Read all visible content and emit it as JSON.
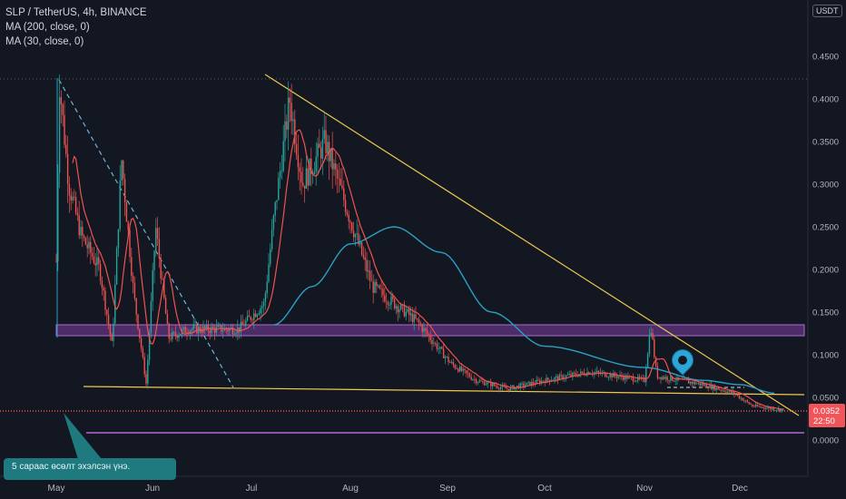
{
  "legend": {
    "symbol": "SLP / TetherUS, 4h, BINANCE",
    "ma200": "MA (200, close, 0)",
    "ma30": "MA (30, close, 0)"
  },
  "currency": "USDT",
  "annotation": "5 сараас өсөлт эхэлсэн үнэ.",
  "colors": {
    "background": "#131722",
    "candle_up": "#26a69a",
    "candle_down": "#ef5350",
    "ma200": "#2b9fc4",
    "ma30": "#ef5350",
    "trendline": "#f0c94c",
    "zone": "#7b3fa0",
    "price_badge": "#f0555a"
  },
  "last_price": {
    "value": "0.0352",
    "countdown": "22:50"
  },
  "chart_data": {
    "type": "candlestick",
    "title": "SLP / TetherUS, 4h, BINANCE",
    "y_axis": {
      "min": -0.02,
      "max": 0.48,
      "ticks": [
        "0.4500",
        "0.4000",
        "0.3500",
        "0.3000",
        "0.2500",
        "0.2000",
        "0.1500",
        "0.1000",
        "0.0500",
        "0.0000"
      ]
    },
    "x_axis": {
      "labels": [
        "May",
        "Jun",
        "Jul",
        "Aug",
        "Sep",
        "Oct",
        "Nov",
        "Dec"
      ]
    },
    "price_path": [
      {
        "t": "May 01",
        "v": 0.21
      },
      {
        "t": "May 02",
        "v": 0.42
      },
      {
        "t": "May 05",
        "v": 0.3
      },
      {
        "t": "May 09",
        "v": 0.24
      },
      {
        "t": "May 15",
        "v": 0.2
      },
      {
        "t": "May 19",
        "v": 0.11
      },
      {
        "t": "May 22",
        "v": 0.33
      },
      {
        "t": "May 26",
        "v": 0.17
      },
      {
        "t": "May 30",
        "v": 0.065
      },
      {
        "t": "Jun 02",
        "v": 0.25
      },
      {
        "t": "Jun 06",
        "v": 0.12
      },
      {
        "t": "Jun 12",
        "v": 0.13
      },
      {
        "t": "Jun 20",
        "v": 0.13
      },
      {
        "t": "Jun 28",
        "v": 0.13
      },
      {
        "t": "Jul 05",
        "v": 0.16
      },
      {
        "t": "Jul 08",
        "v": 0.26
      },
      {
        "t": "Jul 13",
        "v": 0.4
      },
      {
        "t": "Jul 17",
        "v": 0.3
      },
      {
        "t": "Jul 24",
        "v": 0.35
      },
      {
        "t": "Jul 31",
        "v": 0.27
      },
      {
        "t": "Aug 08",
        "v": 0.18
      },
      {
        "t": "Aug 15",
        "v": 0.16
      },
      {
        "t": "Aug 22",
        "v": 0.14
      },
      {
        "t": "Sep 02",
        "v": 0.09
      },
      {
        "t": "Sep 10",
        "v": 0.07
      },
      {
        "t": "Sep 20",
        "v": 0.06
      },
      {
        "t": "Oct 01",
        "v": 0.07
      },
      {
        "t": "Oct 15",
        "v": 0.08
      },
      {
        "t": "Nov 01",
        "v": 0.07
      },
      {
        "t": "Nov 03",
        "v": 0.135
      },
      {
        "t": "Nov 05",
        "v": 0.075
      },
      {
        "t": "Nov 20",
        "v": 0.065
      },
      {
        "t": "Nov 30",
        "v": 0.055
      },
      {
        "t": "Dec 05",
        "v": 0.04
      },
      {
        "t": "Dec 15",
        "v": 0.0352
      }
    ],
    "ma200_path": [
      {
        "t": "Jul 08",
        "v": 0.135
      },
      {
        "t": "Jul 20",
        "v": 0.18
      },
      {
        "t": "Aug 01",
        "v": 0.23
      },
      {
        "t": "Aug 15",
        "v": 0.25
      },
      {
        "t": "Aug 30",
        "v": 0.22
      },
      {
        "t": "Sep 15",
        "v": 0.15
      },
      {
        "t": "Oct 01",
        "v": 0.11
      },
      {
        "t": "Nov 01",
        "v": 0.085
      },
      {
        "t": "Nov 20",
        "v": 0.07
      },
      {
        "t": "Dec 01",
        "v": 0.065
      },
      {
        "t": "Dec 12",
        "v": 0.055
      }
    ],
    "levels": [
      {
        "name": "zone-top",
        "v": 0.133
      },
      {
        "name": "zone-bottom",
        "v": 0.122
      },
      {
        "name": "horizontal-lower",
        "v": 0.0352
      },
      {
        "name": "horizontal-bottom",
        "v": 0.008
      }
    ]
  }
}
